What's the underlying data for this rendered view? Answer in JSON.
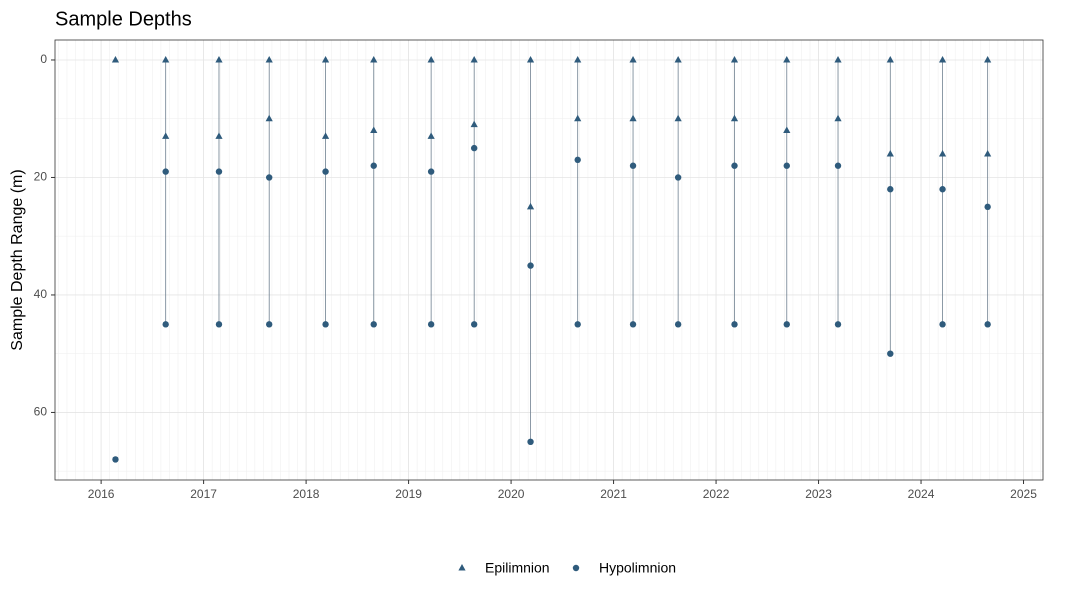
{
  "chart_data": {
    "type": "range-points",
    "title": "Sample Depths",
    "y_label": "Sample Depth Range (m)",
    "series": [
      {
        "name": "Epilimnion",
        "color": "#2f5b7c",
        "shape": "triangle"
      },
      {
        "name": "Hypolimnion",
        "color": "#2f5b7c",
        "shape": "circle"
      }
    ],
    "line_color": "#6f8090",
    "events": [
      {
        "x": 2016.14,
        "epilimnion": [
          0
        ],
        "hypolimnion": [
          68
        ]
      },
      {
        "x": 2016.63,
        "epilimnion": [
          0,
          13
        ],
        "hypolimnion": [
          19,
          45
        ]
      },
      {
        "x": 2017.15,
        "epilimnion": [
          0,
          13
        ],
        "hypolimnion": [
          19,
          45
        ]
      },
      {
        "x": 2017.64,
        "epilimnion": [
          0,
          10
        ],
        "hypolimnion": [
          20,
          45
        ]
      },
      {
        "x": 2018.19,
        "epilimnion": [
          0,
          13
        ],
        "hypolimnion": [
          19,
          45
        ]
      },
      {
        "x": 2018.66,
        "epilimnion": [
          0,
          12
        ],
        "hypolimnion": [
          18,
          45
        ]
      },
      {
        "x": 2019.22,
        "epilimnion": [
          0,
          13
        ],
        "hypolimnion": [
          19,
          45
        ]
      },
      {
        "x": 2019.64,
        "epilimnion": [
          0,
          11
        ],
        "hypolimnion": [
          15,
          45
        ]
      },
      {
        "x": 2020.19,
        "epilimnion": [
          0,
          25
        ],
        "hypolimnion": [
          35,
          65
        ]
      },
      {
        "x": 2020.65,
        "epilimnion": [
          0,
          10
        ],
        "hypolimnion": [
          17,
          45
        ]
      },
      {
        "x": 2021.19,
        "epilimnion": [
          0,
          10
        ],
        "hypolimnion": [
          18,
          45
        ]
      },
      {
        "x": 2021.63,
        "epilimnion": [
          0,
          10
        ],
        "hypolimnion": [
          20,
          45
        ]
      },
      {
        "x": 2022.18,
        "epilimnion": [
          0,
          10
        ],
        "hypolimnion": [
          18,
          45
        ]
      },
      {
        "x": 2022.69,
        "epilimnion": [
          0,
          12
        ],
        "hypolimnion": [
          18,
          45
        ]
      },
      {
        "x": 2023.19,
        "epilimnion": [
          0,
          10
        ],
        "hypolimnion": [
          18,
          45
        ]
      },
      {
        "x": 2023.7,
        "epilimnion": [
          0,
          16
        ],
        "hypolimnion": [
          22,
          50
        ]
      },
      {
        "x": 2024.21,
        "epilimnion": [
          0,
          16
        ],
        "hypolimnion": [
          22,
          45
        ]
      },
      {
        "x": 2024.65,
        "epilimnion": [
          0,
          16
        ],
        "hypolimnion": [
          25,
          45
        ]
      }
    ],
    "xlim": [
      2015.55,
      2025.19
    ],
    "xticks": [
      2016,
      2017,
      2018,
      2019,
      2020,
      2021,
      2022,
      2023,
      2024,
      2025
    ],
    "ylim": [
      71.5,
      -3.4
    ],
    "yticks": [
      0,
      20,
      40,
      60
    ],
    "grid": true
  }
}
